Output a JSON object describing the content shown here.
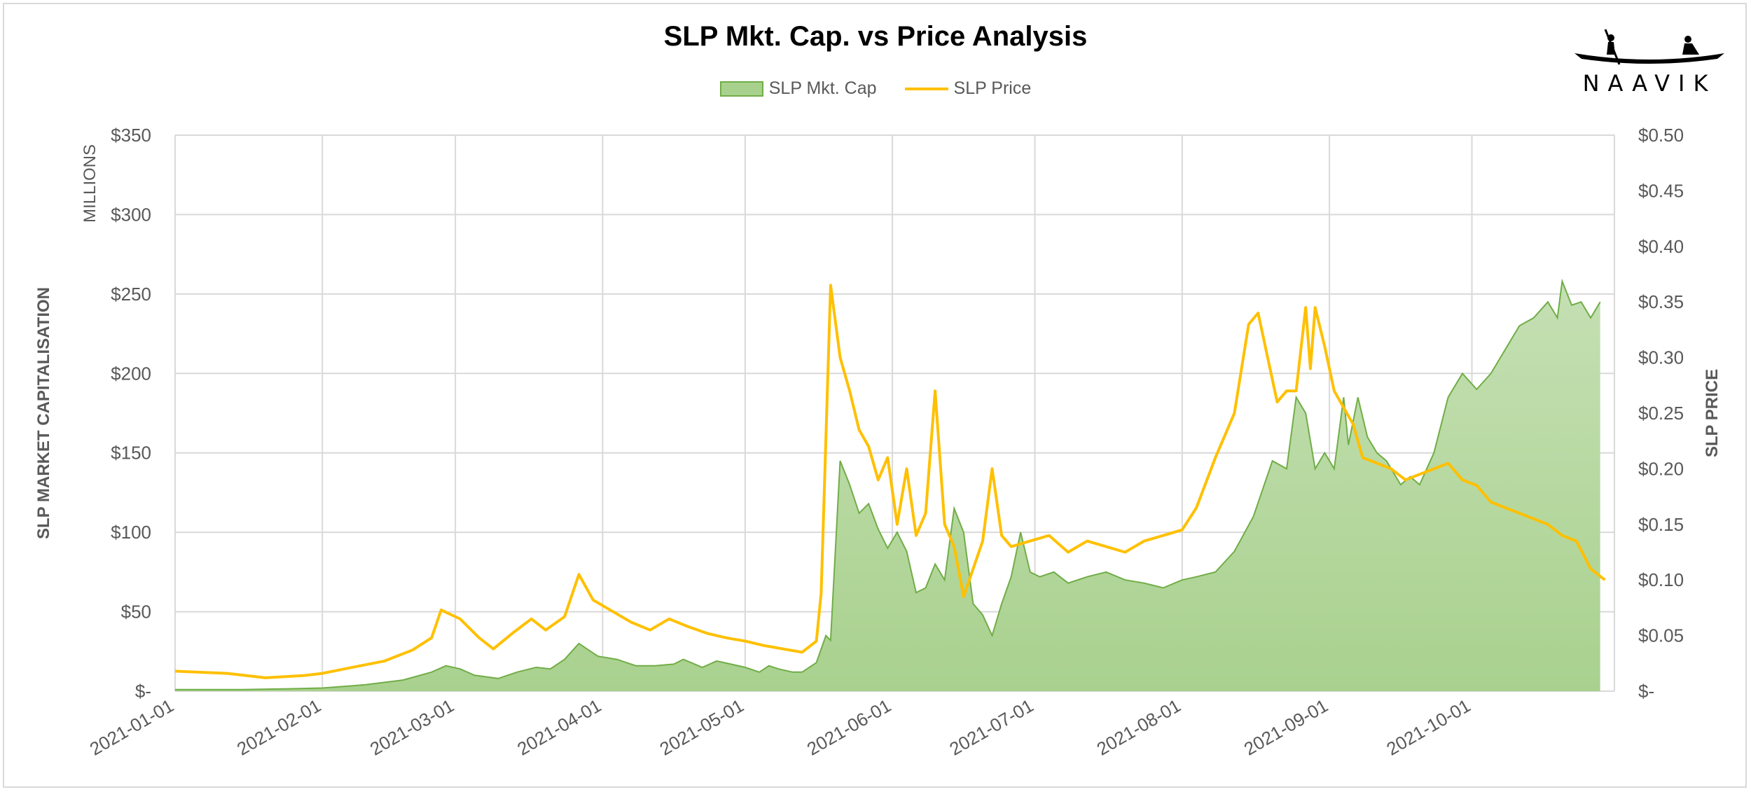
{
  "header": {
    "title": "SLP Mkt. Cap. vs Price Analysis",
    "logo_text": "NAAVIK"
  },
  "legend": {
    "mktcap_label": "SLP Mkt. Cap",
    "price_label": "SLP Price"
  },
  "colors": {
    "mktcap_fill": "#a9d18e",
    "mktcap_line": "#70ad47",
    "price_line": "#ffc000",
    "grid": "#d9d9d9",
    "text": "#595959"
  },
  "chart_data": {
    "type": "line",
    "title": "SLP Mkt. Cap. vs Price Analysis",
    "xlabel": "",
    "ylabel_left": "SLP MARKET CAPITALISATION",
    "ylabel_left_units": "MILLIONS",
    "ylabel_right": "SLP PRICE",
    "x_start": "2021-01-01",
    "x_end": "2021-10-31",
    "x_ticks": [
      "2021-01-01",
      "2021-02-01",
      "2021-03-01",
      "2021-04-01",
      "2021-05-01",
      "2021-06-01",
      "2021-07-01",
      "2021-08-01",
      "2021-09-01",
      "2021-10-01"
    ],
    "ylim_left": [
      0,
      350
    ],
    "ylim_right": [
      0,
      0.5
    ],
    "y_ticks_left": [
      "$-",
      "$50",
      "$100",
      "$150",
      "$200",
      "$250",
      "$300",
      "$350"
    ],
    "y_ticks_right": [
      "$-",
      "$0.05",
      "$0.10",
      "$0.15",
      "$0.20",
      "$0.25",
      "$0.30",
      "$0.35",
      "$0.40",
      "$0.45",
      "$0.50"
    ],
    "series": [
      {
        "name": "SLP Mkt. Cap",
        "kind": "area",
        "axis": "left",
        "points": [
          [
            "2021-01-01",
            1
          ],
          [
            "2021-01-15",
            1
          ],
          [
            "2021-01-25",
            1.5
          ],
          [
            "2021-02-01",
            2
          ],
          [
            "2021-02-10",
            4
          ],
          [
            "2021-02-18",
            7
          ],
          [
            "2021-02-24",
            12
          ],
          [
            "2021-02-27",
            16
          ],
          [
            "2021-03-02",
            14
          ],
          [
            "2021-03-05",
            10
          ],
          [
            "2021-03-10",
            8
          ],
          [
            "2021-03-14",
            12
          ],
          [
            "2021-03-18",
            15
          ],
          [
            "2021-03-21",
            14
          ],
          [
            "2021-03-24",
            20
          ],
          [
            "2021-03-27",
            30
          ],
          [
            "2021-03-31",
            22
          ],
          [
            "2021-04-04",
            20
          ],
          [
            "2021-04-08",
            16
          ],
          [
            "2021-04-12",
            16
          ],
          [
            "2021-04-16",
            17
          ],
          [
            "2021-04-18",
            20
          ],
          [
            "2021-04-22",
            15
          ],
          [
            "2021-04-25",
            19
          ],
          [
            "2021-04-28",
            17
          ],
          [
            "2021-05-01",
            15
          ],
          [
            "2021-05-04",
            12
          ],
          [
            "2021-05-06",
            16
          ],
          [
            "2021-05-08",
            14
          ],
          [
            "2021-05-11",
            12
          ],
          [
            "2021-05-13",
            12
          ],
          [
            "2021-05-16",
            18
          ],
          [
            "2021-05-18",
            35
          ],
          [
            "2021-05-19",
            32
          ],
          [
            "2021-05-21",
            145
          ],
          [
            "2021-05-23",
            130
          ],
          [
            "2021-05-25",
            112
          ],
          [
            "2021-05-27",
            118
          ],
          [
            "2021-05-29",
            102
          ],
          [
            "2021-05-31",
            90
          ],
          [
            "2021-06-02",
            100
          ],
          [
            "2021-06-04",
            88
          ],
          [
            "2021-06-06",
            62
          ],
          [
            "2021-06-08",
            65
          ],
          [
            "2021-06-10",
            80
          ],
          [
            "2021-06-12",
            70
          ],
          [
            "2021-06-14",
            115
          ],
          [
            "2021-06-16",
            100
          ],
          [
            "2021-06-18",
            55
          ],
          [
            "2021-06-20",
            48
          ],
          [
            "2021-06-22",
            35
          ],
          [
            "2021-06-24",
            55
          ],
          [
            "2021-06-26",
            72
          ],
          [
            "2021-06-28",
            100
          ],
          [
            "2021-06-30",
            75
          ],
          [
            "2021-07-02",
            72
          ],
          [
            "2021-07-05",
            75
          ],
          [
            "2021-07-08",
            68
          ],
          [
            "2021-07-12",
            72
          ],
          [
            "2021-07-16",
            75
          ],
          [
            "2021-07-20",
            70
          ],
          [
            "2021-07-24",
            68
          ],
          [
            "2021-07-28",
            65
          ],
          [
            "2021-08-01",
            70
          ],
          [
            "2021-08-04",
            72
          ],
          [
            "2021-08-08",
            75
          ],
          [
            "2021-08-12",
            88
          ],
          [
            "2021-08-16",
            110
          ],
          [
            "2021-08-20",
            145
          ],
          [
            "2021-08-23",
            140
          ],
          [
            "2021-08-25",
            185
          ],
          [
            "2021-08-27",
            175
          ],
          [
            "2021-08-29",
            140
          ],
          [
            "2021-08-31",
            150
          ],
          [
            "2021-09-02",
            140
          ],
          [
            "2021-09-04",
            185
          ],
          [
            "2021-09-05",
            155
          ],
          [
            "2021-09-07",
            185
          ],
          [
            "2021-09-09",
            160
          ],
          [
            "2021-09-11",
            150
          ],
          [
            "2021-09-13",
            145
          ],
          [
            "2021-09-16",
            130
          ],
          [
            "2021-09-18",
            135
          ],
          [
            "2021-09-20",
            130
          ],
          [
            "2021-09-23",
            150
          ],
          [
            "2021-09-26",
            185
          ],
          [
            "2021-09-29",
            200
          ],
          [
            "2021-10-02",
            190
          ],
          [
            "2021-10-05",
            200
          ],
          [
            "2021-10-08",
            215
          ],
          [
            "2021-10-11",
            230
          ],
          [
            "2021-10-14",
            235
          ],
          [
            "2021-10-17",
            245
          ],
          [
            "2021-10-19",
            235
          ],
          [
            "2021-10-20",
            258
          ],
          [
            "2021-10-22",
            243
          ],
          [
            "2021-10-24",
            245
          ],
          [
            "2021-10-26",
            235
          ],
          [
            "2021-10-28",
            245
          ]
        ]
      },
      {
        "name": "SLP Price",
        "kind": "line",
        "axis": "right",
        "points": [
          [
            "2021-01-01",
            0.018
          ],
          [
            "2021-01-12",
            0.016
          ],
          [
            "2021-01-20",
            0.012
          ],
          [
            "2021-01-28",
            0.014
          ],
          [
            "2021-02-01",
            0.016
          ],
          [
            "2021-02-08",
            0.022
          ],
          [
            "2021-02-14",
            0.027
          ],
          [
            "2021-02-20",
            0.037
          ],
          [
            "2021-02-24",
            0.048
          ],
          [
            "2021-02-26",
            0.073
          ],
          [
            "2021-03-02",
            0.065
          ],
          [
            "2021-03-06",
            0.048
          ],
          [
            "2021-03-09",
            0.038
          ],
          [
            "2021-03-13",
            0.052
          ],
          [
            "2021-03-17",
            0.065
          ],
          [
            "2021-03-20",
            0.055
          ],
          [
            "2021-03-24",
            0.067
          ],
          [
            "2021-03-27",
            0.105
          ],
          [
            "2021-03-30",
            0.082
          ],
          [
            "2021-04-03",
            0.072
          ],
          [
            "2021-04-07",
            0.062
          ],
          [
            "2021-04-11",
            0.055
          ],
          [
            "2021-04-15",
            0.065
          ],
          [
            "2021-04-19",
            0.058
          ],
          [
            "2021-04-23",
            0.052
          ],
          [
            "2021-04-27",
            0.048
          ],
          [
            "2021-05-01",
            0.045
          ],
          [
            "2021-05-05",
            0.041
          ],
          [
            "2021-05-09",
            0.038
          ],
          [
            "2021-05-13",
            0.035
          ],
          [
            "2021-05-16",
            0.045
          ],
          [
            "2021-05-17",
            0.088
          ],
          [
            "2021-05-19",
            0.365
          ],
          [
            "2021-05-21",
            0.3
          ],
          [
            "2021-05-23",
            0.27
          ],
          [
            "2021-05-25",
            0.235
          ],
          [
            "2021-05-27",
            0.22
          ],
          [
            "2021-05-29",
            0.19
          ],
          [
            "2021-05-31",
            0.21
          ],
          [
            "2021-06-02",
            0.15
          ],
          [
            "2021-06-04",
            0.2
          ],
          [
            "2021-06-06",
            0.14
          ],
          [
            "2021-06-08",
            0.16
          ],
          [
            "2021-06-10",
            0.27
          ],
          [
            "2021-06-12",
            0.15
          ],
          [
            "2021-06-14",
            0.13
          ],
          [
            "2021-06-16",
            0.085
          ],
          [
            "2021-06-18",
            0.11
          ],
          [
            "2021-06-20",
            0.135
          ],
          [
            "2021-06-22",
            0.2
          ],
          [
            "2021-06-24",
            0.14
          ],
          [
            "2021-06-26",
            0.13
          ],
          [
            "2021-06-30",
            0.135
          ],
          [
            "2021-07-04",
            0.14
          ],
          [
            "2021-07-08",
            0.125
          ],
          [
            "2021-07-12",
            0.135
          ],
          [
            "2021-07-16",
            0.13
          ],
          [
            "2021-07-20",
            0.125
          ],
          [
            "2021-07-24",
            0.135
          ],
          [
            "2021-07-28",
            0.14
          ],
          [
            "2021-08-01",
            0.145
          ],
          [
            "2021-08-04",
            0.165
          ],
          [
            "2021-08-08",
            0.21
          ],
          [
            "2021-08-12",
            0.25
          ],
          [
            "2021-08-15",
            0.33
          ],
          [
            "2021-08-17",
            0.34
          ],
          [
            "2021-08-19",
            0.3
          ],
          [
            "2021-08-21",
            0.26
          ],
          [
            "2021-08-23",
            0.27
          ],
          [
            "2021-08-25",
            0.27
          ],
          [
            "2021-08-27",
            0.345
          ],
          [
            "2021-08-28",
            0.29
          ],
          [
            "2021-08-29",
            0.345
          ],
          [
            "2021-08-31",
            0.31
          ],
          [
            "2021-09-02",
            0.27
          ],
          [
            "2021-09-04",
            0.255
          ],
          [
            "2021-09-06",
            0.24
          ],
          [
            "2021-09-08",
            0.21
          ],
          [
            "2021-09-11",
            0.205
          ],
          [
            "2021-09-14",
            0.2
          ],
          [
            "2021-09-17",
            0.19
          ],
          [
            "2021-09-20",
            0.195
          ],
          [
            "2021-09-23",
            0.2
          ],
          [
            "2021-09-26",
            0.205
          ],
          [
            "2021-09-29",
            0.19
          ],
          [
            "2021-10-02",
            0.185
          ],
          [
            "2021-10-05",
            0.17
          ],
          [
            "2021-10-08",
            0.165
          ],
          [
            "2021-10-11",
            0.16
          ],
          [
            "2021-10-14",
            0.155
          ],
          [
            "2021-10-17",
            0.15
          ],
          [
            "2021-10-20",
            0.14
          ],
          [
            "2021-10-23",
            0.135
          ],
          [
            "2021-10-26",
            0.11
          ],
          [
            "2021-10-29",
            0.1
          ]
        ]
      }
    ]
  }
}
